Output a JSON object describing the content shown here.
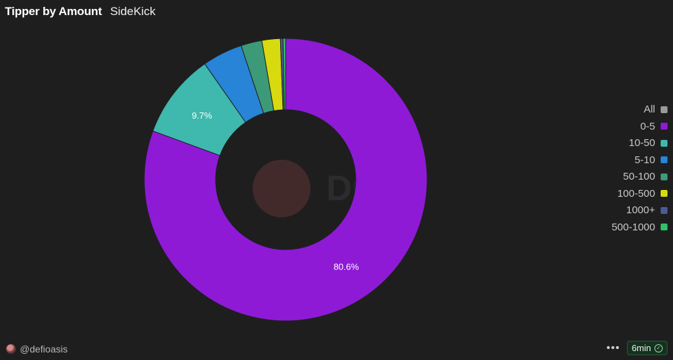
{
  "header": {
    "title": "Tipper by Amount",
    "subtitle": "SideKick"
  },
  "chart_data": {
    "type": "pie",
    "donut": true,
    "categories": [
      "0-5",
      "10-50",
      "5-10",
      "50-100",
      "100-500",
      "1000+",
      "500-1000"
    ],
    "values": [
      80.6,
      9.7,
      4.6,
      2.4,
      2.1,
      0.3,
      0.3
    ],
    "colors": [
      "#8e1ad6",
      "#3fb8ad",
      "#2784d6",
      "#3d9a78",
      "#d8da10",
      "#4a5a98",
      "#2fc06a"
    ],
    "data_labels": [
      "80.6%",
      "9.7%",
      "",
      "",
      "",
      "",
      ""
    ],
    "legend": [
      {
        "label": "All",
        "color": "#9a9a9a"
      },
      {
        "label": "0-5",
        "color": "#8e1ad6"
      },
      {
        "label": "10-50",
        "color": "#3fb8ad"
      },
      {
        "label": "5-10",
        "color": "#2784d6"
      },
      {
        "label": "50-100",
        "color": "#3d9a78"
      },
      {
        "label": "100-500",
        "color": "#d8da10"
      },
      {
        "label": "1000+",
        "color": "#4a5a98"
      },
      {
        "label": "500-1000",
        "color": "#2fc06a"
      }
    ],
    "legend_position": "right",
    "watermark": "Dune"
  },
  "footer": {
    "author": "@defioasis",
    "dots": "•••",
    "refresh": "6min",
    "check": "✓"
  }
}
